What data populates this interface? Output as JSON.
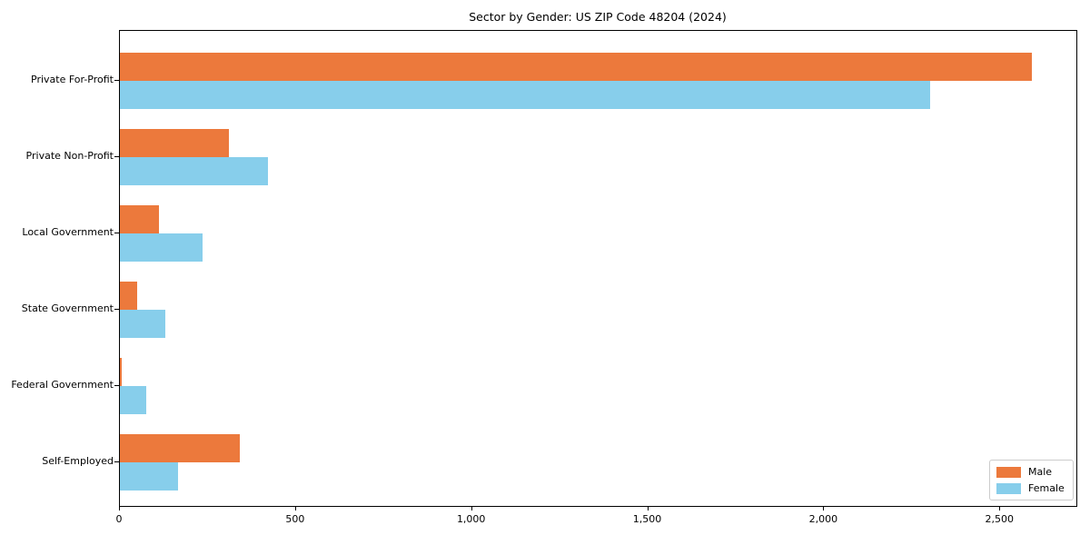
{
  "figure": {
    "title": "Sector by Gender: US ZIP Code 48204 (2024)"
  },
  "chart_data": {
    "type": "bar",
    "orientation": "horizontal",
    "title": "Sector by Gender: US ZIP Code 48204 (2024)",
    "categories": [
      "Private For-Profit",
      "Private Non-Profit",
      "Local Government",
      "State Government",
      "Federal Government",
      "Self-Employed"
    ],
    "series": [
      {
        "name": "Male",
        "color": "#EC793C",
        "values": [
          2590,
          310,
          110,
          50,
          4,
          340
        ]
      },
      {
        "name": "Female",
        "color": "#87CEEB",
        "values": [
          2300,
          420,
          235,
          130,
          75,
          165
        ]
      }
    ],
    "xlabel": "",
    "ylabel": "",
    "xlim": [
      0,
      2716
    ],
    "x_ticks": [
      0,
      500,
      1000,
      1500,
      2000,
      2500
    ],
    "x_tick_labels": [
      "0",
      "500",
      "1,000",
      "1,500",
      "2,000",
      "2,500"
    ],
    "grid": false,
    "legend": {
      "position": "lower right",
      "entries": [
        "Male",
        "Female"
      ]
    }
  }
}
